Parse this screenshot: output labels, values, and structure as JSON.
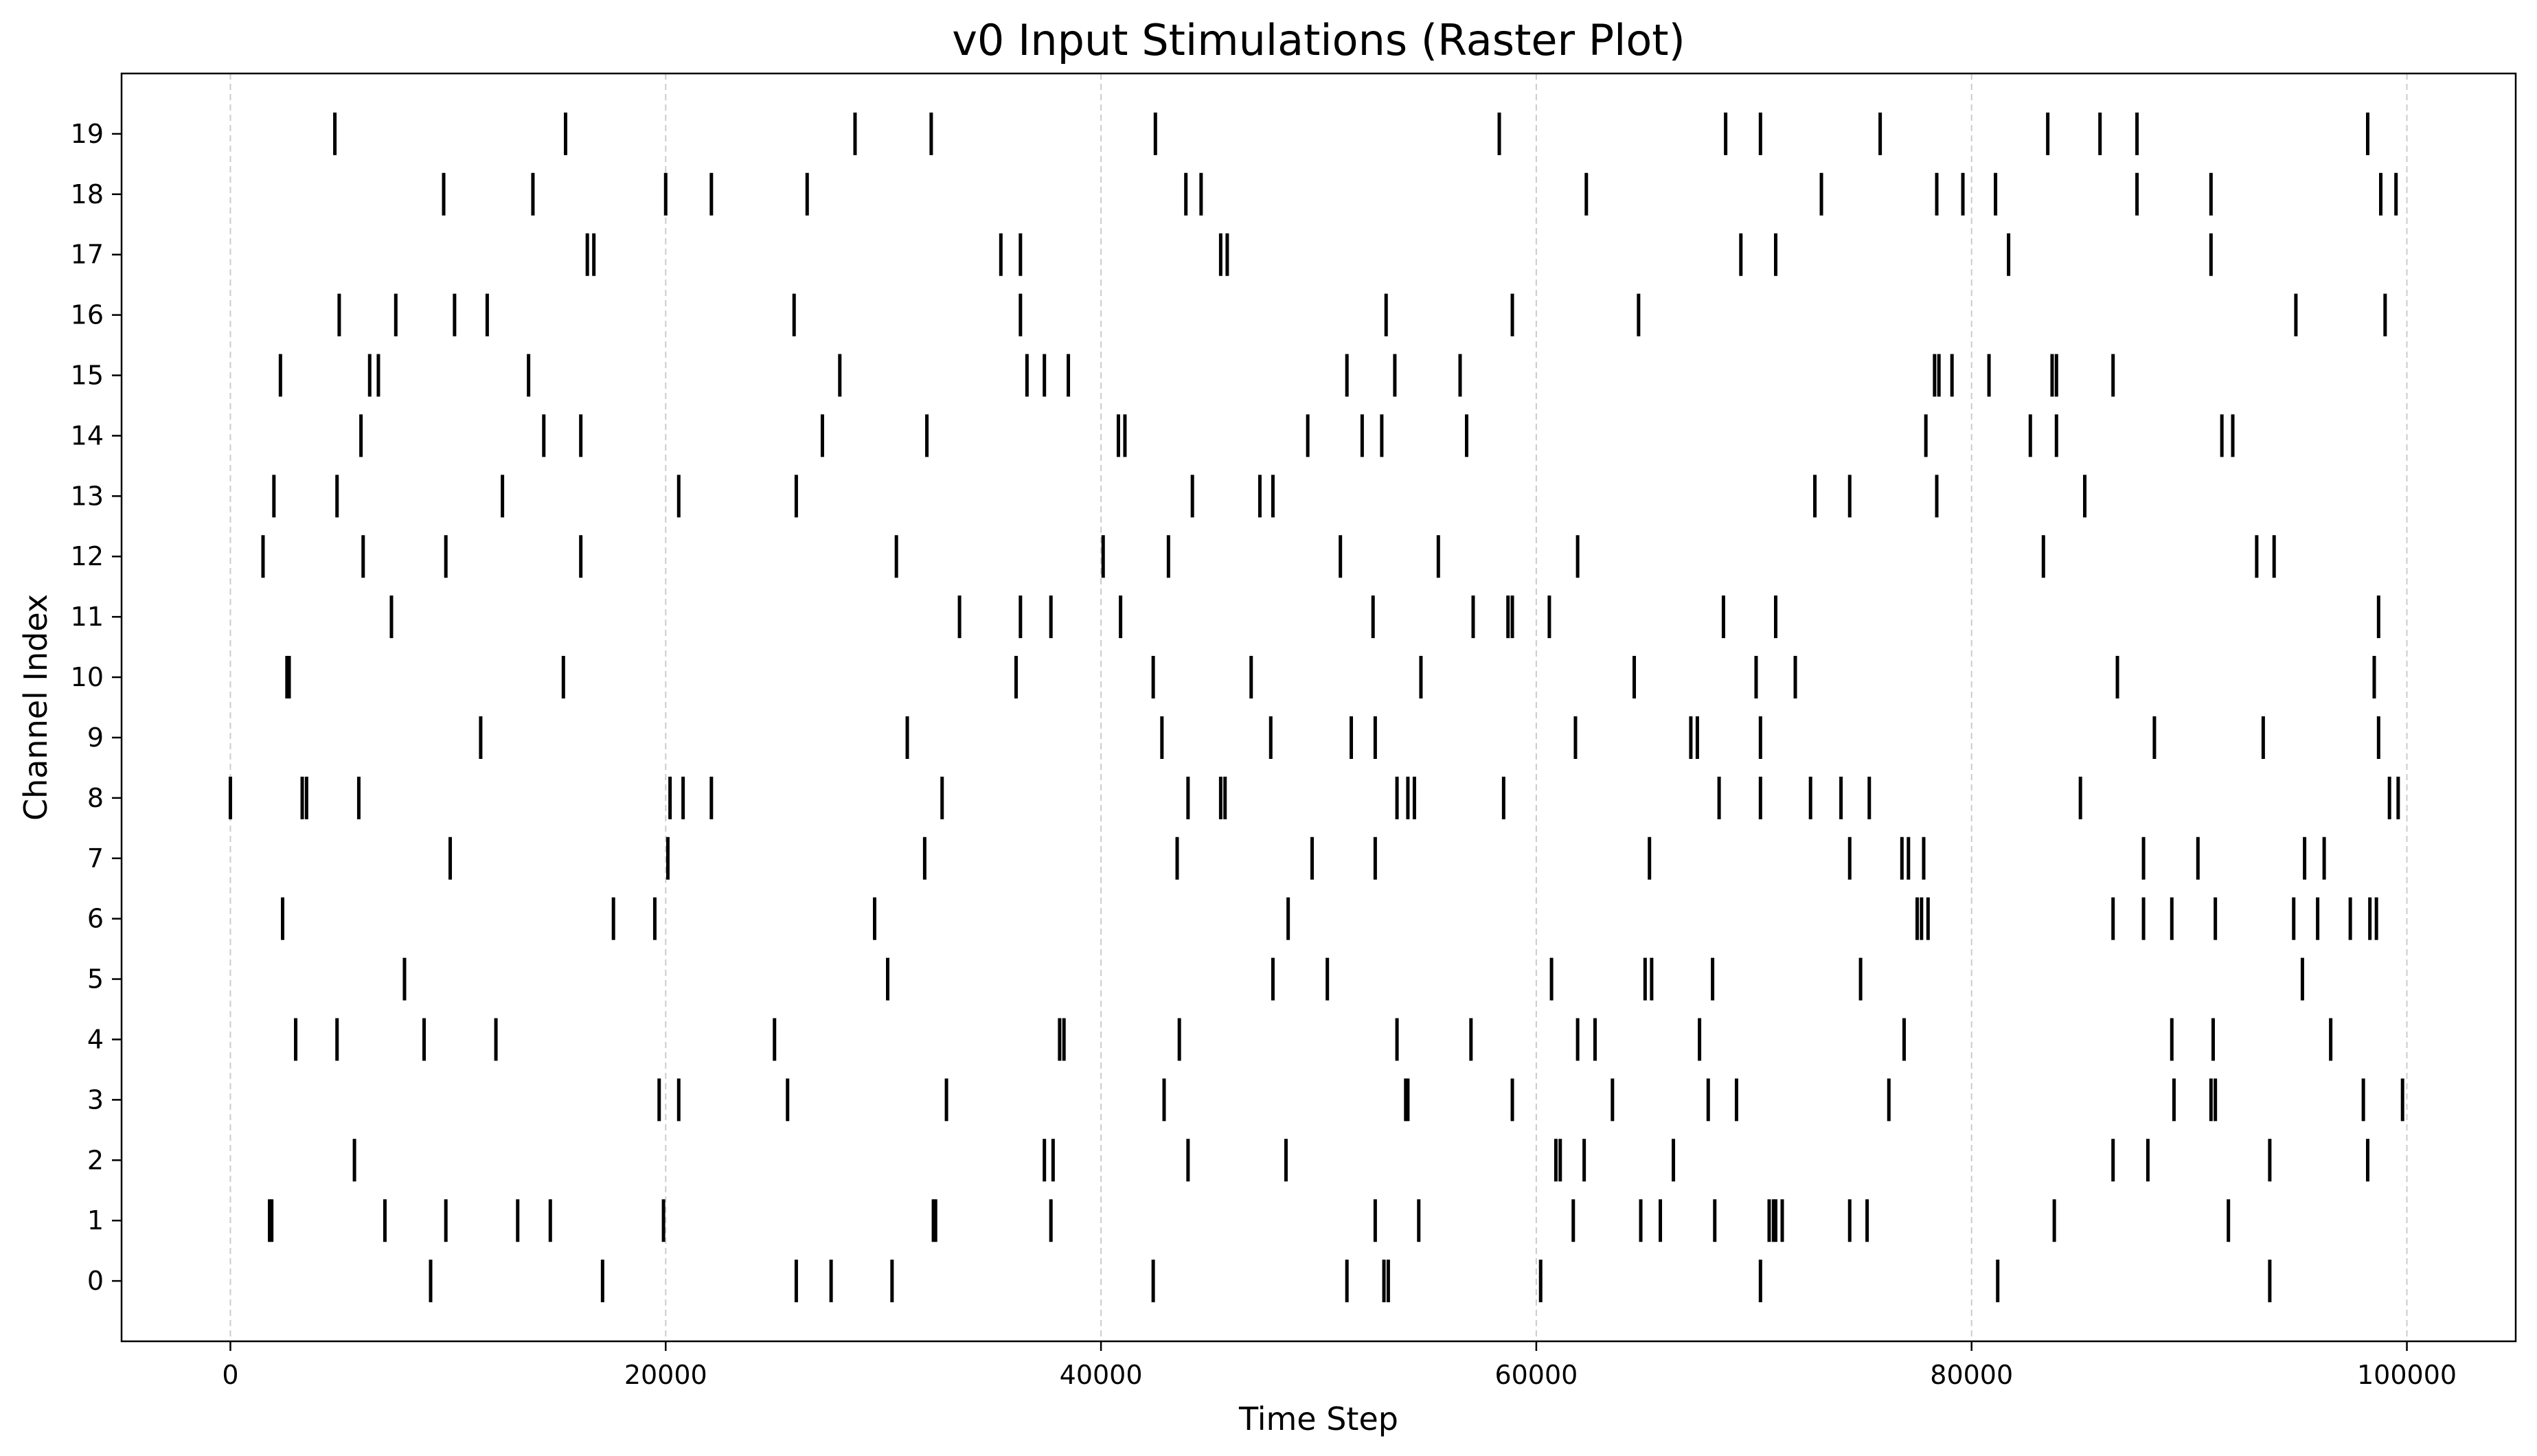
{
  "chart_data": {
    "type": "raster",
    "title": "v0 Input Stimulations (Raster Plot)",
    "xlabel": "Time Step",
    "ylabel": "Channel Index",
    "xlim": [
      -5000,
      105000
    ],
    "ylim": [
      -1,
      20
    ],
    "xticks": [
      0,
      20000,
      40000,
      60000,
      80000,
      100000
    ],
    "yticks": [
      0,
      1,
      2,
      3,
      4,
      5,
      6,
      7,
      8,
      9,
      10,
      11,
      12,
      13,
      14,
      15,
      16,
      17,
      18,
      19
    ],
    "grid": "x-dashed",
    "colors": {
      "event": "#000000",
      "grid": "#cccccc",
      "axes": "#000000"
    },
    "series": [
      {
        "channel": 0,
        "times": [
          9200,
          17100,
          26000,
          27600,
          30400,
          42400,
          51300,
          53000,
          53200,
          60200,
          70300,
          81200,
          93700
        ]
      },
      {
        "channel": 1,
        "times": [
          1800,
          1900,
          7100,
          9900,
          13200,
          14700,
          19900,
          32300,
          32400,
          37700,
          52600,
          54600,
          61700,
          64800,
          65700,
          68200,
          70700,
          70900,
          71000,
          71300,
          74400,
          75200,
          83800,
          91800
        ]
      },
      {
        "channel": 2,
        "times": [
          5700,
          37400,
          37800,
          44000,
          48500,
          60900,
          61100,
          62200,
          66300,
          86500,
          88100,
          93700,
          98200
        ]
      },
      {
        "channel": 3,
        "times": [
          19700,
          20600,
          25600,
          32900,
          42900,
          54000,
          54100,
          58900,
          63500,
          67900,
          69200,
          76200,
          89300,
          91000,
          91200,
          98000,
          99800
        ]
      },
      {
        "channel": 4,
        "times": [
          3000,
          4900,
          8900,
          12200,
          25000,
          38100,
          38300,
          43600,
          53600,
          57000,
          61900,
          62700,
          67500,
          76900,
          89200,
          91100,
          96500
        ]
      },
      {
        "channel": 5,
        "times": [
          8000,
          30200,
          47900,
          50400,
          60700,
          65000,
          65300,
          68100,
          74900,
          95200
        ]
      },
      {
        "channel": 6,
        "times": [
          2400,
          17600,
          19500,
          29600,
          48600,
          77500,
          77700,
          78000,
          86500,
          87900,
          89200,
          91200,
          94800,
          95900,
          97400,
          98300,
          98600
        ]
      },
      {
        "channel": 7,
        "times": [
          10100,
          20100,
          31900,
          43500,
          49700,
          52600,
          65200,
          74400,
          76800,
          77100,
          77800,
          87900,
          90400,
          95300,
          96200
        ]
      },
      {
        "channel": 8,
        "times": [
          0,
          3300,
          3500,
          5900,
          20200,
          20800,
          22100,
          32700,
          44000,
          45500,
          45700,
          53600,
          54100,
          54400,
          58500,
          68400,
          70300,
          72600,
          74000,
          75300,
          85000,
          99200,
          99600
        ]
      },
      {
        "channel": 9,
        "times": [
          11500,
          31100,
          42800,
          47800,
          51500,
          52600,
          61800,
          67100,
          67400,
          70300,
          88400,
          93400,
          98700
        ]
      },
      {
        "channel": 10,
        "times": [
          2600,
          2700,
          15300,
          36100,
          42400,
          46900,
          54700,
          64500,
          70100,
          71900,
          86700,
          98500
        ]
      },
      {
        "channel": 11,
        "times": [
          7400,
          33500,
          36300,
          37700,
          40900,
          52500,
          57100,
          58700,
          58900,
          60600,
          68600,
          71000,
          98700
        ]
      },
      {
        "channel": 12,
        "times": [
          1500,
          6100,
          9900,
          16100,
          30600,
          40100,
          43100,
          51000,
          55500,
          61900,
          83300,
          93100,
          93900
        ]
      },
      {
        "channel": 13,
        "times": [
          2000,
          4900,
          12500,
          20600,
          26000,
          44200,
          47300,
          47900,
          72800,
          74400,
          78400,
          85200
        ]
      },
      {
        "channel": 14,
        "times": [
          6000,
          14400,
          16100,
          27200,
          32000,
          40800,
          41100,
          49500,
          52000,
          52900,
          56800,
          77900,
          82700,
          83900,
          91500,
          92000
        ]
      },
      {
        "channel": 15,
        "times": [
          2300,
          6400,
          6800,
          13700,
          28000,
          36600,
          37400,
          38500,
          51300,
          53500,
          56500,
          78300,
          78500,
          79100,
          80800,
          83700,
          83900,
          86500
        ]
      },
      {
        "channel": 16,
        "times": [
          5000,
          7600,
          10300,
          11800,
          25900,
          36300,
          53100,
          58900,
          64700,
          94900,
          99000
        ]
      },
      {
        "channel": 17,
        "times": [
          16400,
          16700,
          35400,
          36300,
          45500,
          45800,
          69400,
          71000,
          81700,
          91000
        ]
      },
      {
        "channel": 18,
        "times": [
          9800,
          13900,
          20000,
          22100,
          26500,
          43900,
          44600,
          62300,
          73100,
          78400,
          79600,
          81100,
          87600,
          91000,
          98800,
          99500
        ]
      },
      {
        "channel": 19,
        "times": [
          4800,
          15400,
          28700,
          32200,
          42500,
          58300,
          68700,
          70300,
          75800,
          83500,
          85900,
          87600,
          98200
        ]
      }
    ]
  }
}
